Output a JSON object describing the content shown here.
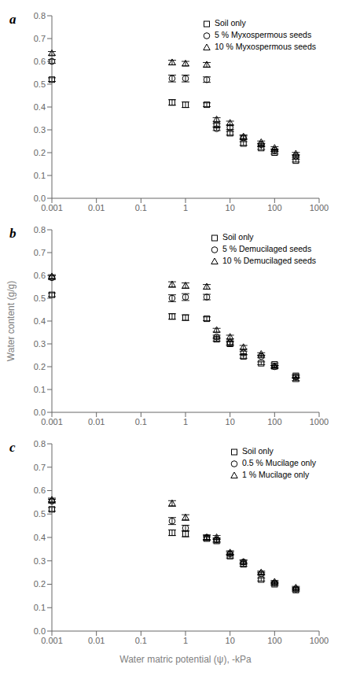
{
  "chart_data": [
    {
      "type": "scatter",
      "title": "a",
      "x": [
        0.001,
        0.5,
        1,
        3,
        5,
        10,
        20,
        50,
        100,
        300
      ],
      "series": [
        {
          "name": "Soil only",
          "color": "black",
          "marker": "square",
          "values": [
            0.52,
            0.42,
            0.41,
            0.41,
            0.32,
            0.285,
            0.24,
            0.22,
            0.2,
            0.165
          ],
          "yerr": [
            0.008,
            0.012,
            0.012,
            0.008,
            0.008,
            0.008,
            0.008,
            0.006,
            0.006,
            0.006
          ]
        },
        {
          "name": "5 % Myxospermous seeds",
          "color": "black",
          "marker": "circle",
          "values": [
            0.6,
            0.525,
            0.525,
            0.52,
            0.305,
            0.31,
            0.265,
            0.235,
            0.21,
            0.185
          ],
          "yerr": [
            0.008,
            0.015,
            0.015,
            0.012,
            0.008,
            0.008,
            0.008,
            0.006,
            0.006,
            0.006
          ]
        },
        {
          "name": "10 % Myxospermous seeds",
          "color": "black",
          "marker": "triangle",
          "values": [
            0.635,
            0.595,
            0.59,
            0.585,
            0.345,
            0.33,
            0.27,
            0.245,
            0.22,
            0.195
          ],
          "yerr": [
            0.008,
            0.01,
            0.01,
            0.01,
            0.008,
            0.008,
            0.008,
            0.006,
            0.006,
            0.006
          ]
        }
      ],
      "xlim": [
        0.001,
        1000
      ],
      "xticks": [
        0.001,
        0.01,
        0.1,
        1,
        10,
        100,
        1000
      ],
      "ylim": [
        0,
        0.8
      ],
      "yticks": [
        {
          "value": 0,
          "label": "0.0"
        },
        0.1,
        0.2,
        0.3,
        0.4,
        0.5,
        0.6,
        0.7,
        0.8
      ],
      "log": "x",
      "grid": false,
      "legend": "upper right"
    },
    {
      "type": "scatter",
      "title": "b",
      "ylabel": "Water content (g/g)",
      "x": [
        0.001,
        0.5,
        1,
        3,
        5,
        10,
        20,
        50,
        100,
        300
      ],
      "series": [
        {
          "name": "Soil only",
          "color": "black",
          "marker": "square",
          "values": [
            0.515,
            0.42,
            0.415,
            0.41,
            0.32,
            0.3,
            0.245,
            0.215,
            0.21,
            0.16
          ],
          "yerr": [
            0.008,
            0.012,
            0.012,
            0.008,
            0.008,
            0.008,
            0.008,
            0.006,
            0.006,
            0.006
          ]
        },
        {
          "name": "5 % Demucilaged seeds",
          "color": "black",
          "marker": "circle",
          "values": [
            0.59,
            0.5,
            0.505,
            0.505,
            0.33,
            0.305,
            0.26,
            0.245,
            0.2,
            0.155
          ],
          "yerr": [
            0.008,
            0.015,
            0.015,
            0.012,
            0.008,
            0.008,
            0.008,
            0.006,
            0.006,
            0.006
          ]
        },
        {
          "name": "10 % Demucilaged seeds",
          "color": "black",
          "marker": "triangle",
          "values": [
            0.595,
            0.56,
            0.555,
            0.55,
            0.36,
            0.33,
            0.285,
            0.255,
            0.2,
            0.145
          ],
          "yerr": [
            0.008,
            0.012,
            0.012,
            0.01,
            0.008,
            0.008,
            0.008,
            0.006,
            0.006,
            0.006
          ]
        }
      ],
      "xlim": [
        0.001,
        1000
      ],
      "xticks": [
        0.001,
        0.01,
        0.1,
        1,
        10,
        100,
        1000
      ],
      "ylim": [
        0,
        0.8
      ],
      "yticks": [
        {
          "value": 0,
          "label": "0.0"
        },
        0.1,
        0.2,
        0.3,
        0.4,
        0.5,
        0.6,
        0.7,
        0.8
      ],
      "log": "x",
      "grid": false,
      "legend": "upper right"
    },
    {
      "type": "scatter",
      "title": "c",
      "xlabel": "Water matric potential (ψ), -kPa",
      "x": [
        0.001,
        0.5,
        1,
        3,
        5,
        10,
        20,
        50,
        100,
        300
      ],
      "series": [
        {
          "name": "Soil only",
          "color": "black",
          "marker": "square",
          "values": [
            0.52,
            0.42,
            0.415,
            0.395,
            0.385,
            0.32,
            0.285,
            0.22,
            0.2,
            0.175
          ],
          "yerr": [
            0.008,
            0.012,
            0.012,
            0.008,
            0.008,
            0.008,
            0.008,
            0.006,
            0.006,
            0.006
          ]
        },
        {
          "name": "0.5 % Mucilage only",
          "color": "black",
          "marker": "circle",
          "values": [
            0.555,
            0.47,
            0.44,
            0.4,
            0.39,
            0.33,
            0.295,
            0.245,
            0.205,
            0.18
          ],
          "yerr": [
            0.008,
            0.015,
            0.012,
            0.01,
            0.008,
            0.008,
            0.008,
            0.006,
            0.006,
            0.006
          ]
        },
        {
          "name": "1 % Mucilage only",
          "color": "black",
          "marker": "triangle",
          "values": [
            0.56,
            0.545,
            0.485,
            0.4,
            0.4,
            0.335,
            0.295,
            0.25,
            0.21,
            0.185
          ],
          "yerr": [
            0.008,
            0.012,
            0.012,
            0.01,
            0.008,
            0.008,
            0.008,
            0.006,
            0.006,
            0.006
          ]
        }
      ],
      "xlim": [
        0.001,
        1000
      ],
      "xticks": [
        0.001,
        0.01,
        0.1,
        1,
        10,
        100,
        1000
      ],
      "ylim": [
        0,
        0.8
      ],
      "yticks": [
        {
          "value": 0,
          "label": "0.0"
        },
        0.1,
        0.2,
        0.3,
        0.4,
        0.5,
        0.6,
        0.7,
        0.8
      ],
      "log": "x",
      "grid": false,
      "legend": "upper right"
    }
  ]
}
